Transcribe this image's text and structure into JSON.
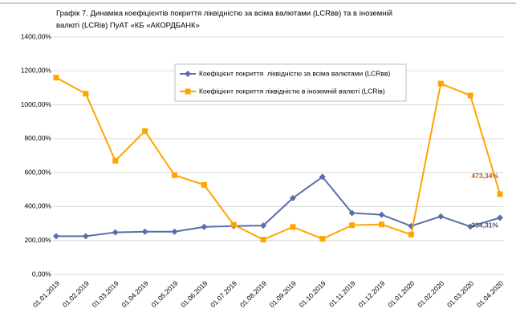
{
  "chart_data": {
    "type": "line",
    "title": [
      "Графік 7. Динаміка коефіцієнтів покриття ліквідністю за всіма валютами (LCRвв) та в іноземній",
      "валюті (LCRів) ПуАТ «КБ «АКОРДБАНК»"
    ],
    "categories": [
      "01.01.2019",
      "01.02.2019",
      "01.03.2019",
      "01.04.2019",
      "01.05.2019",
      "01.06.2019",
      "01.07.2019",
      "01.08.2019",
      "01.09.2019",
      "01.10.2019",
      "01.11.2019",
      "01.12.2019",
      "01.01.2020",
      "01.02.2020",
      "01.03.2020",
      "01.04.2020"
    ],
    "series": [
      {
        "name": "Коефіцієнт покриття  ліквідністю за всіма валютами (LCRвв)",
        "color": "#5a6ea8",
        "marker": "diamond",
        "values": [
          225,
          225,
          248,
          252,
          252,
          280,
          285,
          288,
          450,
          575,
          362,
          352,
          285,
          342,
          282,
          334.31
        ],
        "value_labels": [
          null,
          null,
          null,
          null,
          null,
          null,
          null,
          null,
          null,
          null,
          null,
          null,
          null,
          null,
          null,
          "334,31%"
        ],
        "label_color": "#44546a"
      },
      {
        "name": "Коефіцієнт покриття ліквідністю в іноземній валюті (LCRів)",
        "color": "#ffa500",
        "marker": "square",
        "values": [
          1160,
          1065,
          670,
          845,
          585,
          528,
          293,
          205,
          280,
          210,
          290,
          295,
          235,
          1125,
          1055,
          473.34
        ],
        "value_labels": [
          null,
          null,
          null,
          null,
          null,
          null,
          null,
          null,
          null,
          null,
          null,
          null,
          null,
          null,
          null,
          "473,34%"
        ],
        "label_color": "#c55a11"
      }
    ],
    "ylim": [
      0,
      1400
    ],
    "yticks": [
      {
        "value": 0,
        "label": "0,00%"
      },
      {
        "value": 200,
        "label": "200,00%"
      },
      {
        "value": 400,
        "label": "400,00%"
      },
      {
        "value": 600,
        "label": "600,00%"
      },
      {
        "value": 800,
        "label": "800,00%"
      },
      {
        "value": 1000,
        "label": "1000,00%"
      },
      {
        "value": 1200,
        "label": "1200,00%"
      },
      {
        "value": 1400,
        "label": "1400,00%"
      }
    ],
    "grid": true,
    "legend": "top-center"
  }
}
